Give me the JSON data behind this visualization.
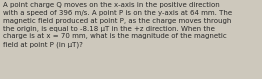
{
  "text": "A point charge Q moves on the x-axis in the positive direction\nwith a speed of 396 m/s. A point P is on the y-axis at 64 mm. The\nmagnetic field produced at point P, as the charge moves through\nthe origin, is equal to -8.18 μT in the +z direction. When the\ncharge is at x = 70 mm, what is the magnitude of the magnetic\nfield at point P (in μT)?",
  "background_color": "#cdc8bc",
  "text_color": "#2a2a2a",
  "font_size": 5.05,
  "fig_width": 2.62,
  "fig_height": 0.79,
  "dpi": 100
}
